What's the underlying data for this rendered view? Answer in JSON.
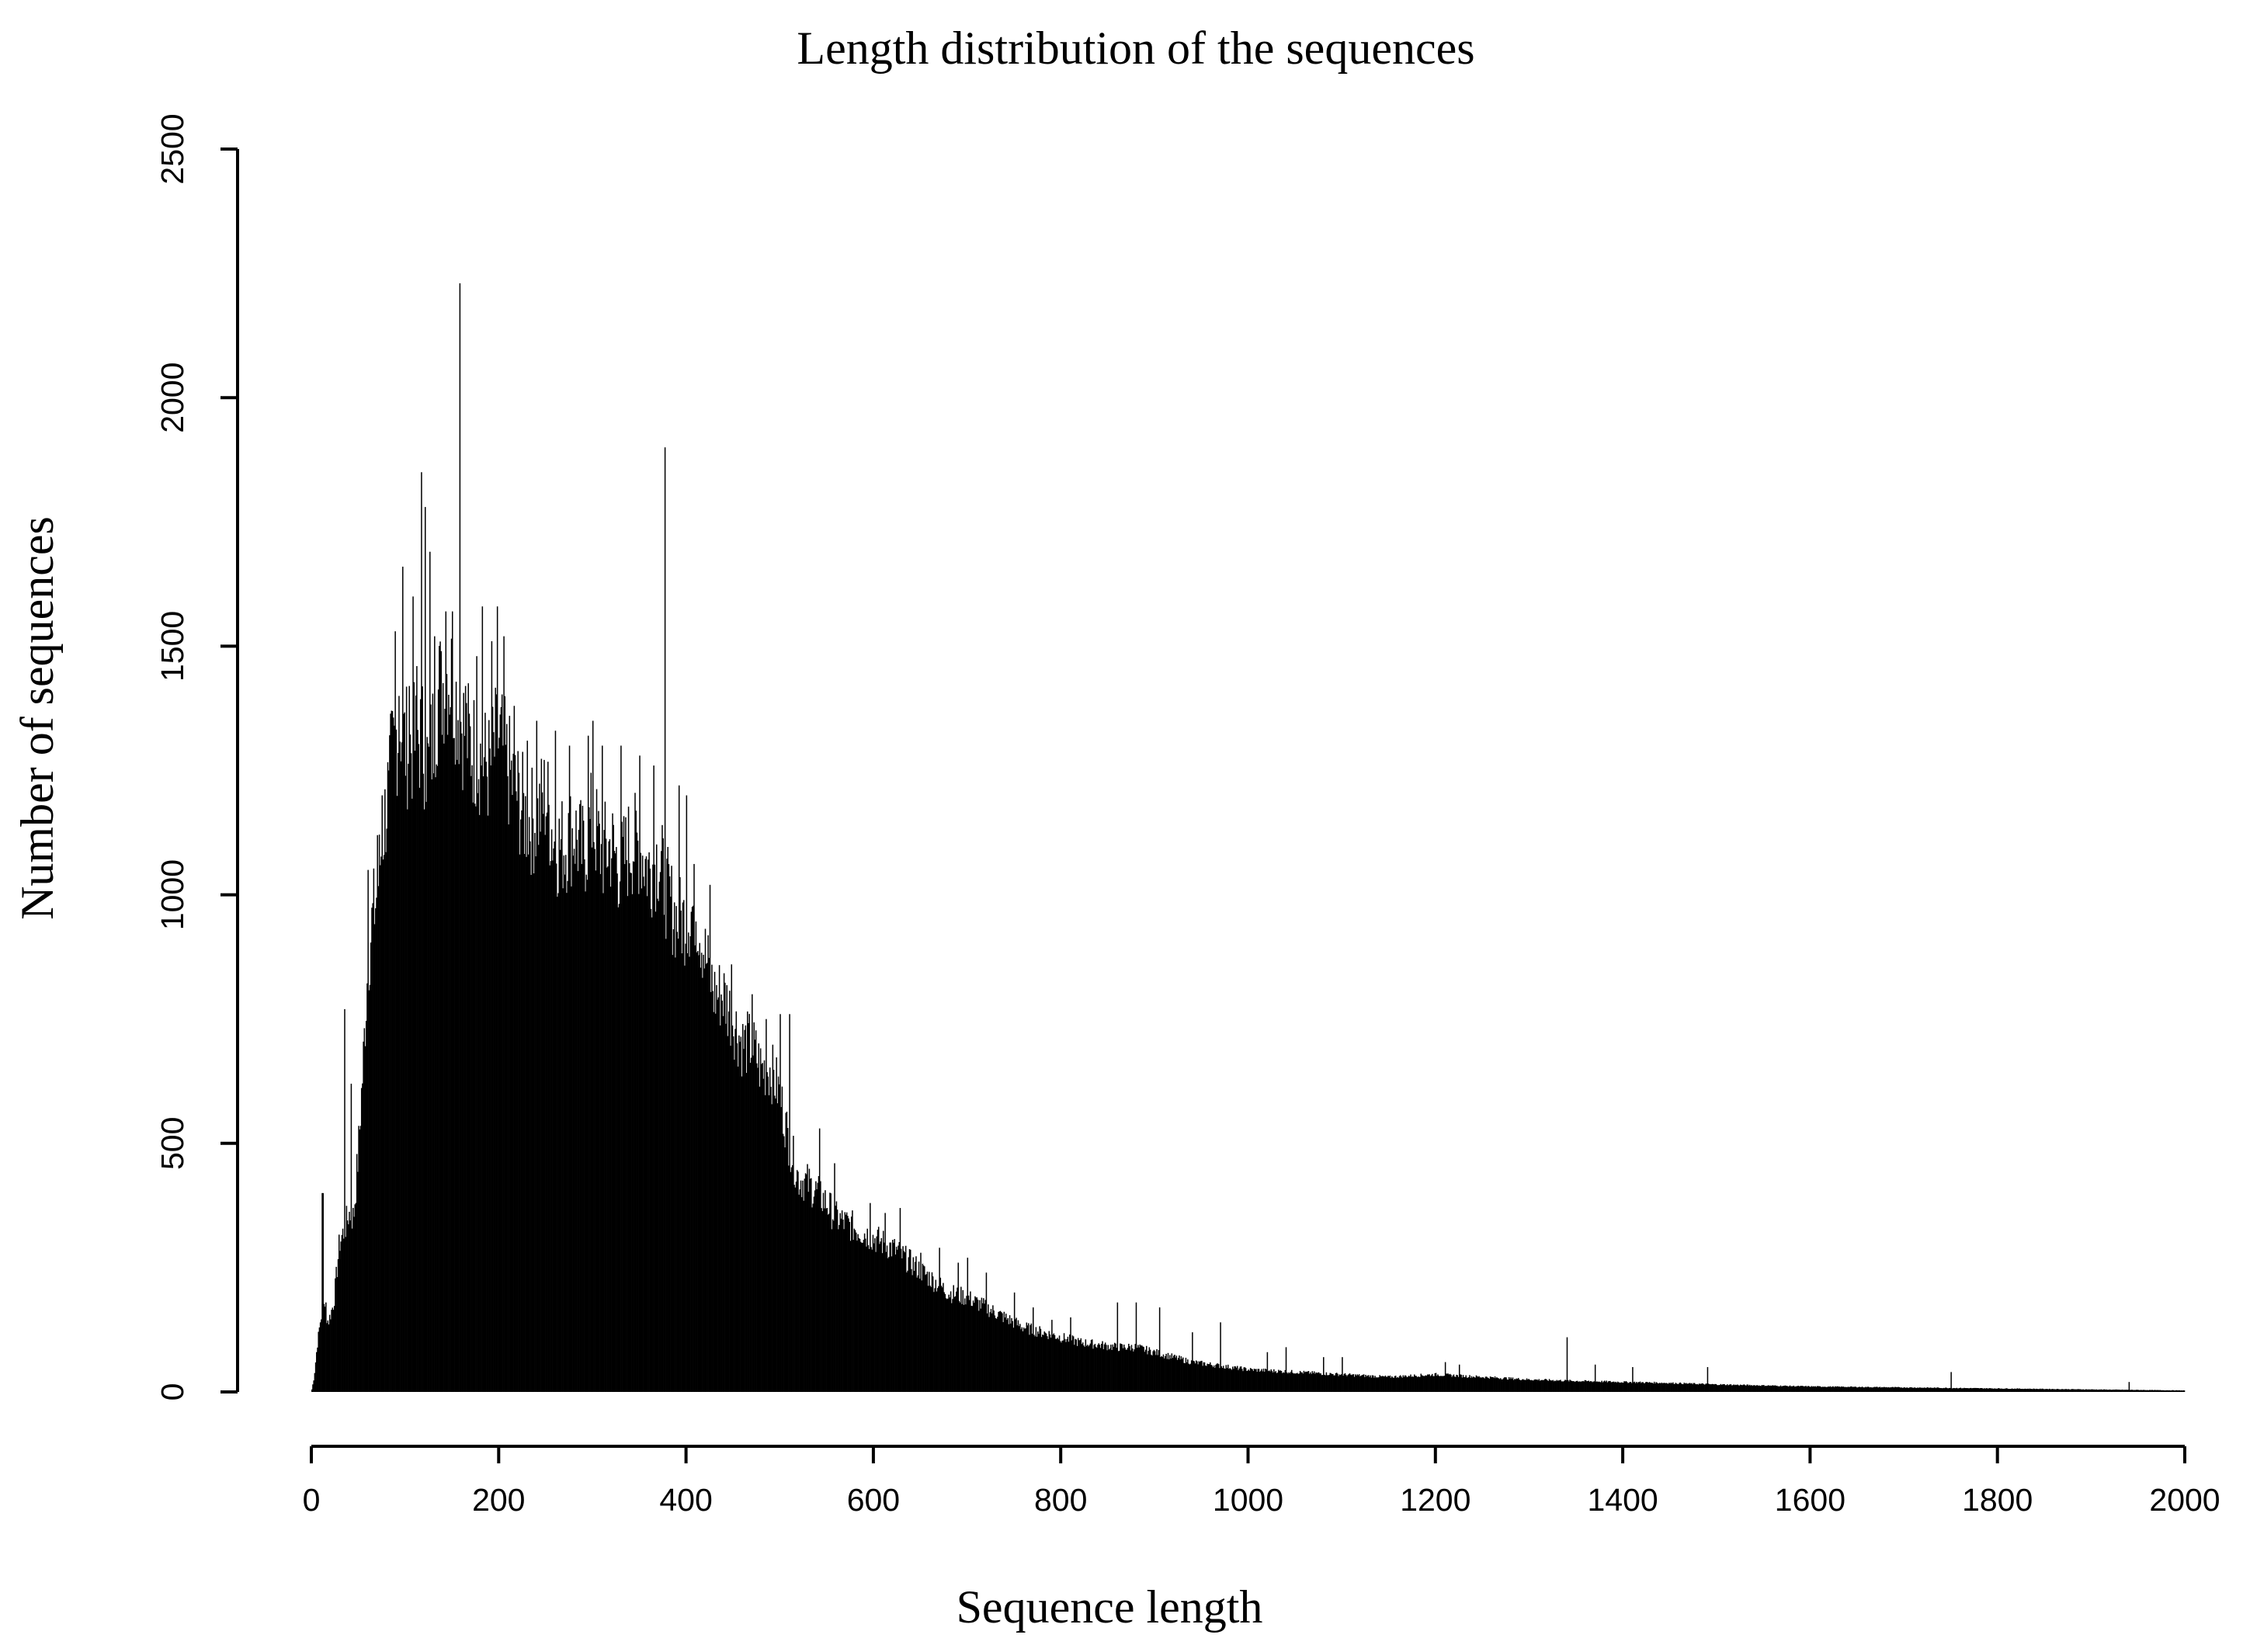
{
  "chart_data": {
    "type": "bar",
    "title": "Length distribution of the sequences",
    "xlabel": "Sequence length",
    "ylabel": "Number of sequences",
    "xlim": [
      0,
      2000
    ],
    "ylim": [
      0,
      2500
    ],
    "xticks": [
      "0",
      "200",
      "400",
      "600",
      "800",
      "1000",
      "1200",
      "1400",
      "1600",
      "1800",
      "2000"
    ],
    "yticks": [
      "0",
      "500",
      "1000",
      "1500",
      "2000",
      "2500"
    ],
    "grid": false,
    "legend": "none",
    "bar_color": "#000000",
    "bin_width": 1,
    "anchors": {
      "x": [
        0,
        3,
        6,
        10,
        14,
        18,
        24,
        30,
        36,
        40,
        45,
        50,
        55,
        60,
        65,
        70,
        75,
        80,
        88,
        95,
        100,
        110,
        118,
        125,
        135,
        145,
        150,
        160,
        170,
        180,
        190,
        200,
        210,
        220,
        230,
        240,
        250,
        260,
        270,
        280,
        290,
        300,
        310,
        320,
        330,
        340,
        350,
        360,
        370,
        380,
        390,
        400,
        410,
        420,
        430,
        440,
        450,
        460,
        470,
        480,
        490,
        500,
        510,
        520,
        530,
        540,
        550,
        560,
        580,
        600,
        620,
        640,
        660,
        680,
        700,
        720,
        740,
        760,
        780,
        800,
        820,
        840,
        860,
        880,
        900,
        920,
        940,
        960,
        980,
        1000,
        1050,
        1100,
        1150,
        1200,
        1250,
        1300,
        1350,
        1400,
        1450,
        1500,
        1550,
        1600,
        1650,
        1700,
        1750,
        1800,
        1850,
        1900,
        1950,
        2000
      ],
      "y": [
        0,
        30,
        90,
        150,
        170,
        140,
        180,
        300,
        330,
        360,
        350,
        480,
        650,
        850,
        950,
        1000,
        1100,
        1180,
        1300,
        1350,
        1300,
        1300,
        1320,
        1250,
        1400,
        1450,
        1430,
        1350,
        1300,
        1280,
        1250,
        1320,
        1250,
        1200,
        1150,
        1150,
        1200,
        1100,
        1100,
        1130,
        1080,
        1150,
        1080,
        1100,
        1050,
        1100,
        1100,
        1050,
        1080,
        1000,
        950,
        950,
        980,
        880,
        800,
        800,
        750,
        700,
        700,
        650,
        650,
        600,
        500,
        430,
        420,
        400,
        380,
        350,
        330,
        310,
        290,
        260,
        230,
        200,
        190,
        170,
        150,
        130,
        120,
        110,
        100,
        95,
        90,
        90,
        80,
        70,
        60,
        55,
        50,
        45,
        40,
        35,
        30,
        35,
        30,
        25,
        22,
        20,
        18,
        15,
        13,
        11,
        10,
        9,
        8,
        7,
        6,
        5,
        4,
        3
      ]
    },
    "spikes": [
      {
        "x": 11,
        "y": 400
      },
      {
        "x": 12,
        "y": 400
      },
      {
        "x": 15,
        "y": 180
      },
      {
        "x": 35,
        "y": 770
      },
      {
        "x": 42,
        "y": 620
      },
      {
        "x": 60,
        "y": 1050
      },
      {
        "x": 70,
        "y": 1120
      },
      {
        "x": 75,
        "y": 1200
      },
      {
        "x": 82,
        "y": 1250
      },
      {
        "x": 89,
        "y": 1530
      },
      {
        "x": 93,
        "y": 1400
      },
      {
        "x": 97,
        "y": 1660
      },
      {
        "x": 104,
        "y": 1420
      },
      {
        "x": 108,
        "y": 1600
      },
      {
        "x": 112,
        "y": 1460
      },
      {
        "x": 117,
        "y": 1850
      },
      {
        "x": 121,
        "y": 1780
      },
      {
        "x": 126,
        "y": 1690
      },
      {
        "x": 131,
        "y": 1520
      },
      {
        "x": 138,
        "y": 1490
      },
      {
        "x": 143,
        "y": 1570
      },
      {
        "x": 150,
        "y": 1570
      },
      {
        "x": 158,
        "y": 2230
      },
      {
        "x": 164,
        "y": 1420
      },
      {
        "x": 176,
        "y": 1480
      },
      {
        "x": 182,
        "y": 1580
      },
      {
        "x": 192,
        "y": 1510
      },
      {
        "x": 198,
        "y": 1580
      },
      {
        "x": 205,
        "y": 1520
      },
      {
        "x": 216,
        "y": 1380
      },
      {
        "x": 230,
        "y": 1310
      },
      {
        "x": 240,
        "y": 1350
      },
      {
        "x": 260,
        "y": 1330
      },
      {
        "x": 275,
        "y": 1300
      },
      {
        "x": 295,
        "y": 1320
      },
      {
        "x": 300,
        "y": 1350
      },
      {
        "x": 310,
        "y": 1300
      },
      {
        "x": 330,
        "y": 1300
      },
      {
        "x": 350,
        "y": 1280
      },
      {
        "x": 365,
        "y": 1260
      },
      {
        "x": 377,
        "y": 1900
      },
      {
        "x": 392,
        "y": 1220
      },
      {
        "x": 400,
        "y": 1200
      },
      {
        "x": 425,
        "y": 1020
      },
      {
        "x": 448,
        "y": 860
      },
      {
        "x": 470,
        "y": 800
      },
      {
        "x": 485,
        "y": 750
      },
      {
        "x": 500,
        "y": 760
      },
      {
        "x": 510,
        "y": 760
      },
      {
        "x": 542,
        "y": 530
      },
      {
        "x": 558,
        "y": 460
      },
      {
        "x": 596,
        "y": 380
      },
      {
        "x": 612,
        "y": 360
      },
      {
        "x": 628,
        "y": 370
      },
      {
        "x": 650,
        "y": 280
      },
      {
        "x": 670,
        "y": 290
      },
      {
        "x": 690,
        "y": 260
      },
      {
        "x": 700,
        "y": 270
      },
      {
        "x": 720,
        "y": 240
      },
      {
        "x": 750,
        "y": 200
      },
      {
        "x": 770,
        "y": 170
      },
      {
        "x": 790,
        "y": 145
      },
      {
        "x": 810,
        "y": 150
      },
      {
        "x": 860,
        "y": 180
      },
      {
        "x": 880,
        "y": 180
      },
      {
        "x": 905,
        "y": 170
      },
      {
        "x": 940,
        "y": 120
      },
      {
        "x": 970,
        "y": 140
      },
      {
        "x": 1020,
        "y": 80
      },
      {
        "x": 1040,
        "y": 90
      },
      {
        "x": 1080,
        "y": 70
      },
      {
        "x": 1100,
        "y": 70
      },
      {
        "x": 1210,
        "y": 60
      },
      {
        "x": 1225,
        "y": 55
      },
      {
        "x": 1340,
        "y": 110
      },
      {
        "x": 1370,
        "y": 55
      },
      {
        "x": 1410,
        "y": 50
      },
      {
        "x": 1490,
        "y": 50
      },
      {
        "x": 1750,
        "y": 40
      },
      {
        "x": 1940,
        "y": 20
      }
    ]
  }
}
